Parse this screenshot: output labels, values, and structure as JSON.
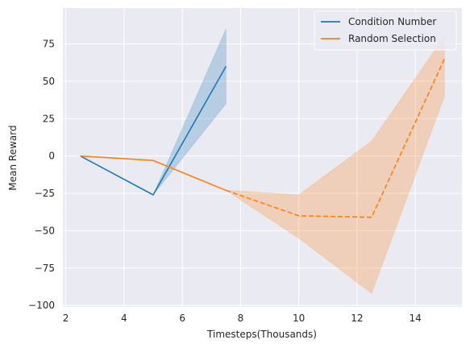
{
  "chart_data": {
    "type": "line",
    "title": "",
    "xlabel": "Timesteps(Thousands)",
    "ylabel": "Mean Reward",
    "xlim": [
      1.9,
      15.6
    ],
    "ylim": [
      -101,
      99
    ],
    "xticks": [
      2,
      4,
      6,
      8,
      10,
      12,
      14
    ],
    "yticks": [
      -100,
      -75,
      -50,
      -25,
      0,
      25,
      50,
      75
    ],
    "grid": true,
    "legend_position": "top-right",
    "series": [
      {
        "name": "Condition Number",
        "color": "#1f77b4",
        "x": [
          2.5,
          5,
          7.5
        ],
        "y": [
          0,
          -26,
          60
        ],
        "upper": [
          0,
          -26,
          85
        ],
        "lower": [
          0,
          -26,
          35
        ],
        "linestyle": "solid"
      },
      {
        "name": "Random Selection",
        "color": "#ff7f0e",
        "x": [
          2.5,
          5,
          7.5,
          10,
          12.5,
          15
        ],
        "y": [
          0,
          -3,
          -23,
          -40,
          -41,
          65
        ],
        "upper": [
          0,
          -3,
          -23,
          -26,
          10,
          80
        ],
        "lower": [
          0,
          -3,
          -23,
          -55,
          -92,
          40
        ],
        "linestyle": [
          {
            "from": 0,
            "to": 2,
            "style": "solid"
          },
          {
            "from": 2,
            "to": 5,
            "style": "dashed"
          }
        ]
      }
    ]
  }
}
